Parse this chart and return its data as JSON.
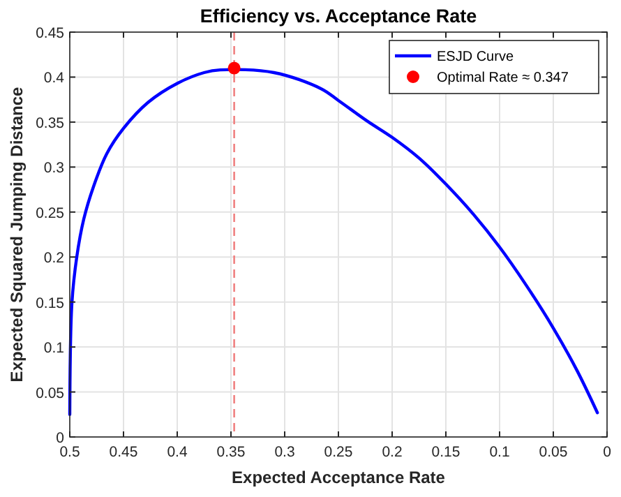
{
  "chart_data": {
    "type": "line",
    "title": "Efficiency vs. Acceptance Rate",
    "xlabel": "Expected Acceptance Rate",
    "ylabel": "Expected Squared Jumping Distance",
    "xlim": [
      0.5,
      0
    ],
    "xticks": [
      0.5,
      0.45,
      0.4,
      0.35,
      0.3,
      0.25,
      0.2,
      0.15,
      0.1,
      0.05,
      0
    ],
    "ylim": [
      0,
      0.45
    ],
    "yticks": [
      0,
      0.05,
      0.1,
      0.15,
      0.2,
      0.25,
      0.3,
      0.35,
      0.4,
      0.45
    ],
    "grid": true,
    "legend": "top right",
    "ref_lines": [
      {
        "axis": "x",
        "value": 0.347,
        "color": "#f08080",
        "line_style": "dashed"
      }
    ],
    "series": [
      {
        "name": "ESJD Curve",
        "color": "#0000ff",
        "marker": "none",
        "line_style": "solid",
        "x": [
          0.5,
          0.498,
          0.4935,
          0.487,
          0.478,
          0.4655,
          0.45,
          0.427,
          0.4,
          0.375,
          0.36,
          0.31,
          0.266,
          0.25,
          0.223,
          0.2,
          0.175,
          0.15,
          0.124,
          0.1,
          0.076,
          0.05,
          0.028,
          0.009
        ],
        "values": [
          0.025,
          0.149,
          0.2,
          0.242,
          0.278,
          0.315,
          0.343,
          0.372,
          0.393,
          0.405,
          0.408,
          0.405,
          0.387,
          0.374,
          0.351,
          0.333,
          0.31,
          0.281,
          0.247,
          0.211,
          0.17,
          0.121,
          0.074,
          0.027
        ]
      },
      {
        "name": "Optimal Rate ≈ 0.347",
        "type": "scatter",
        "color": "#ff0000",
        "marker": "circle",
        "x": [
          0.347
        ],
        "values": [
          0.41
        ]
      }
    ]
  }
}
